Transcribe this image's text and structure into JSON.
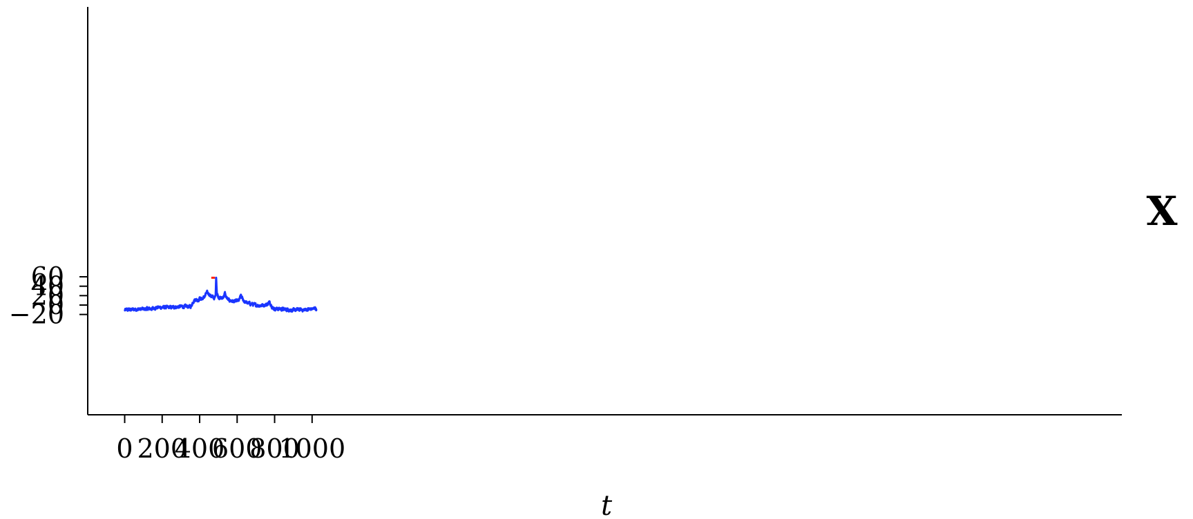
{
  "chart_data": {
    "type": "line",
    "xlabel": "t",
    "ylabel": "",
    "side_label": "X",
    "xlim": [
      -20,
      1065
    ],
    "ylim": [
      -23,
      63
    ],
    "x_ticks": [
      0,
      200,
      400,
      600,
      800,
      1000
    ],
    "x_tick_labels": [
      "0",
      "200",
      "400",
      "600",
      "800",
      "1000"
    ],
    "y_ticks": [
      -20,
      0,
      20,
      40,
      60
    ],
    "y_tick_labels": [
      "−20",
      "0",
      "20",
      "40",
      "60"
    ],
    "grid": false,
    "colors": {
      "series": "#1a35ff",
      "marker": "#ff2200",
      "axis": "#000000"
    },
    "series": [
      {
        "type": "line",
        "n_points": 1024,
        "x_start": 0,
        "x_end": 1023,
        "x": [
          0,
          10,
          20,
          40,
          60,
          80,
          100,
          120,
          140,
          160,
          180,
          200,
          220,
          240,
          260,
          280,
          300,
          320,
          340,
          355,
          360,
          370,
          380,
          390,
          400,
          410,
          420,
          430,
          435,
          440,
          450,
          460,
          470,
          480,
          485,
          488,
          492,
          500,
          510,
          520,
          530,
          535,
          540,
          550,
          560,
          570,
          580,
          590,
          600,
          610,
          620,
          630,
          640,
          650,
          660,
          680,
          700,
          720,
          740,
          760,
          770,
          780,
          790,
          800,
          820,
          850,
          880,
          900,
          920,
          940,
          960,
          980,
          1000,
          1010,
          1015,
          1023
        ],
        "y": [
          -11,
          -10,
          -10,
          -9.5,
          -9,
          -9,
          -8.5,
          -8,
          -8,
          -6,
          -5,
          -5,
          -5,
          -5,
          -4.5,
          -4,
          -3,
          -3,
          -3,
          -3,
          3,
          10,
          12,
          10,
          14,
          13,
          15,
          20,
          25,
          26,
          24,
          19,
          17,
          14,
          20,
          58,
          25,
          17,
          15,
          14,
          20,
          25,
          18,
          12,
          10,
          9,
          8,
          7,
          9,
          10,
          20,
          12,
          7,
          5,
          4,
          2,
          0,
          -1,
          0,
          1,
          6,
          2,
          -6,
          -8,
          -8,
          -9,
          -10,
          -11,
          -10,
          -10,
          -10,
          -9,
          -8,
          -8,
          -5,
          -9
        ]
      }
    ],
    "marker_line": {
      "x": [
        462,
        482
      ],
      "y": 58
    }
  }
}
